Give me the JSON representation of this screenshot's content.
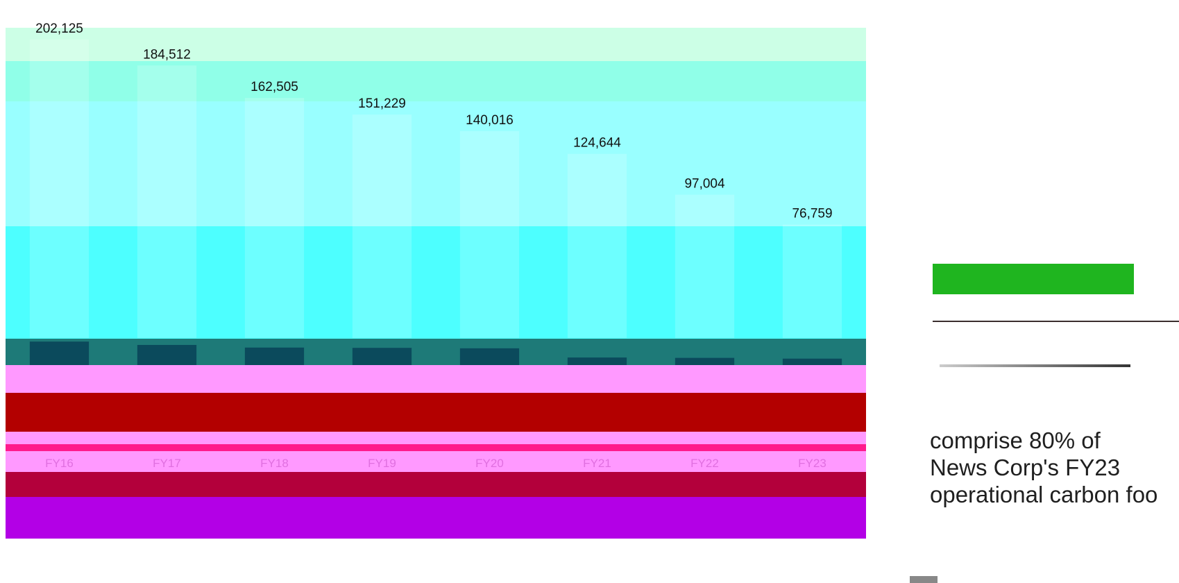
{
  "chart_data": {
    "type": "bar",
    "categories": [
      "FY16",
      "FY17",
      "FY18",
      "FY19",
      "FY20",
      "FY21",
      "FY22",
      "FY23"
    ],
    "series": [
      {
        "values": [
          202125,
          184512,
          162505,
          151229,
          140016,
          124644,
          97004,
          76759
        ]
      },
      {
        "values": [
          35618,
          30506,
          26543,
          26081,
          25417,
          11427,
          10906,
          9771
        ]
      }
    ],
    "value_labels": [
      "202,125",
      "184,512",
      "162,505",
      "151,229",
      "140,016",
      "124,644",
      "97,004",
      "76,759"
    ],
    "ylim": [
      0,
      210000
    ],
    "colors": {
      "total_band": "#4dffff",
      "top_band": "#ccffe6",
      "mid_band": "#99ffff",
      "secondary": "#1e7a78",
      "secondary_dark": "#0b4a5c",
      "pink_band": "#ff99ff",
      "red": "#b30000",
      "magenta": "#ff1a8c",
      "crimson": "#b3003b",
      "purple": "#b300e6"
    }
  },
  "side_text": {
    "lines": [
      "comprise 80% of",
      "News Corp's FY23",
      "operational carbon foo"
    ]
  }
}
